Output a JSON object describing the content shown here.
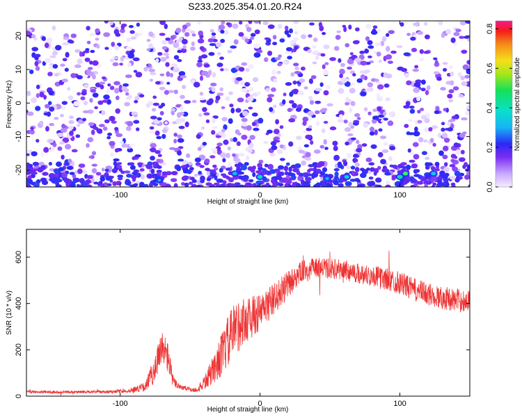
{
  "title": "S233.2025.354.01.20.R24",
  "chart_data": [
    {
      "type": "heatmap",
      "xlabel": "Height of straight line (km)",
      "ylabel": "Frequency (Hz)",
      "xlim": [
        -167,
        150
      ],
      "ylim": [
        -25,
        24.5
      ],
      "xticks": [
        -100,
        0,
        100
      ],
      "yticks": [
        -20,
        -10,
        0,
        10,
        20
      ],
      "colorbar": {
        "label": "Normalized spectral amplitude",
        "range": [
          0,
          0.84
        ],
        "ticks": [
          0.0,
          0.2,
          0.4,
          0.6,
          0.8
        ]
      },
      "features": [
        {
          "x": 0,
          "y": -22,
          "value": 0.35
        },
        {
          "x": -18,
          "y": -21,
          "value": 0.28
        },
        {
          "x": 48,
          "y": -22.5,
          "value": 0.25
        },
        {
          "x": 62,
          "y": -22,
          "value": 0.3
        },
        {
          "x": 100,
          "y": -22,
          "value": 0.38
        },
        {
          "x": 104,
          "y": -21,
          "value": 0.5
        },
        {
          "x": 124,
          "y": -21,
          "value": 0.3
        },
        {
          "x": -72,
          "y": -23,
          "value": 0.22
        }
      ],
      "background_value_range": [
        0.0,
        0.15
      ],
      "high_density_band_y": [
        -25,
        -18
      ]
    },
    {
      "type": "line",
      "xlabel": "Height of straight line (km)",
      "ylabel": "SNR (10 * v/v)",
      "xlim": [
        -167,
        150
      ],
      "ylim": [
        0,
        720
      ],
      "xticks": [
        -100,
        0,
        100
      ],
      "yticks": [
        0,
        200,
        400,
        600
      ],
      "series": [
        {
          "color": "#ee3333",
          "envelope": {
            "x": [
              -167,
              -120,
              -95,
              -82,
              -76,
              -70,
              -66,
              -62,
              -55,
              -45,
              -38,
              -30,
              -24,
              -18,
              -10,
              0,
              10,
              20,
              30,
              40,
              50,
              60,
              70,
              80,
              90,
              100,
              110,
              120,
              130,
              140,
              150
            ],
            "mean": [
              18,
              18,
              22,
              40,
              110,
              200,
              170,
              60,
              35,
              25,
              70,
              150,
              220,
              290,
              330,
              360,
              420,
              480,
              540,
              555,
              550,
              545,
              530,
              520,
              505,
              490,
              460,
              440,
              425,
              415,
              410
            ],
            "amp": [
              6,
              6,
              8,
              20,
              60,
              90,
              70,
              25,
              12,
              10,
              40,
              80,
              110,
              120,
              100,
              80,
              70,
              60,
              45,
              45,
              45,
              45,
              45,
              45,
              50,
              50,
              50,
              50,
              50,
              50,
              50
            ]
          }
        }
      ]
    }
  ]
}
